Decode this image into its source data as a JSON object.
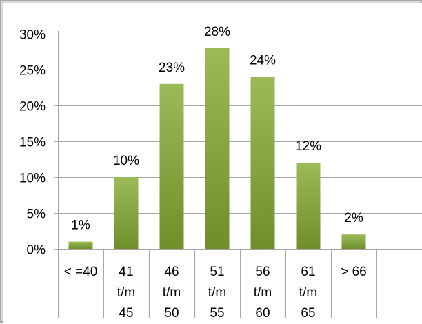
{
  "chart_data": {
    "type": "bar",
    "categories": [
      [
        "< =40"
      ],
      [
        "41",
        "t/m",
        "45"
      ],
      [
        "46",
        "t/m",
        "50"
      ],
      [
        "51",
        "t/m",
        "55"
      ],
      [
        "56",
        "t/m",
        "60"
      ],
      [
        "61",
        "t/m",
        "65"
      ],
      [
        "> 66"
      ],
      [
        ""
      ]
    ],
    "values": [
      1,
      10,
      23,
      28,
      24,
      12,
      2,
      null
    ],
    "data_labels": [
      "1%",
      "10%",
      "23%",
      "28%",
      "24%",
      "12%",
      "2%",
      ""
    ],
    "y_ticks": [
      "0%",
      "5%",
      "10%",
      "15%",
      "20%",
      "25%",
      "30%"
    ],
    "ylim": [
      0,
      30
    ],
    "y_unit": "percent",
    "grid": "horizontal",
    "legend": "none",
    "colors": {
      "bar_top": "#9bbb59",
      "bar_bottom": "#6e8f2a",
      "plot_bg": "#ffffff",
      "outer_bg": "#d9d9d9",
      "grid": "#a6a6a6"
    }
  }
}
